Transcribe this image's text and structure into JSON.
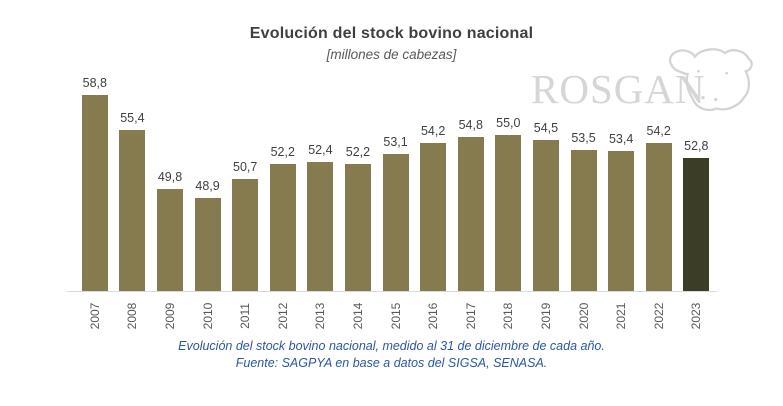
{
  "title": "Evolución del stock bovino nacional",
  "subtitle": "[millones de cabezas]",
  "logo": {
    "text": "ROSGAN",
    "icon": "cow-head-icon"
  },
  "footer": {
    "line1": "Evolución del stock bovino nacional, medido al 31 de diciembre de cada año.",
    "line2": "Fuente: SAGPYA en base a datos del SIGSA, SENASA."
  },
  "colors": {
    "bar": "#857B4E",
    "bar_highlight": "#3C3D26",
    "axis_line": "#D9D9D9",
    "title_text": "#3F3F3F",
    "value_label_text": "#404040",
    "year_label_text": "#595959",
    "footer_text": "#2A57A5",
    "logo_gray": "#D6D6D6"
  },
  "chart_data": {
    "type": "bar",
    "title": "Evolución del stock bovino nacional",
    "subtitle": "[millones de cabezas]",
    "unit": "millones de cabezas",
    "categories": [
      "2007",
      "2008",
      "2009",
      "2010",
      "2011",
      "2012",
      "2013",
      "2014",
      "2015",
      "2016",
      "2017",
      "2018",
      "2019",
      "2020",
      "2021",
      "2022",
      "2023"
    ],
    "values": [
      58.8,
      55.4,
      49.8,
      48.9,
      50.7,
      52.2,
      52.4,
      52.2,
      53.1,
      54.2,
      54.8,
      55.0,
      54.5,
      53.5,
      53.4,
      54.2,
      52.8
    ],
    "value_labels": [
      "58,8",
      "55,4",
      "49,8",
      "48,9",
      "50,7",
      "52,2",
      "52,4",
      "52,2",
      "53,1",
      "54,2",
      "54,8",
      "55,0",
      "54,5",
      "53,5",
      "53,4",
      "54,2",
      "52,8"
    ],
    "highlight_index": 16,
    "ylim": [
      40,
      60
    ],
    "grid": false,
    "legend": false,
    "data_labels": true
  }
}
